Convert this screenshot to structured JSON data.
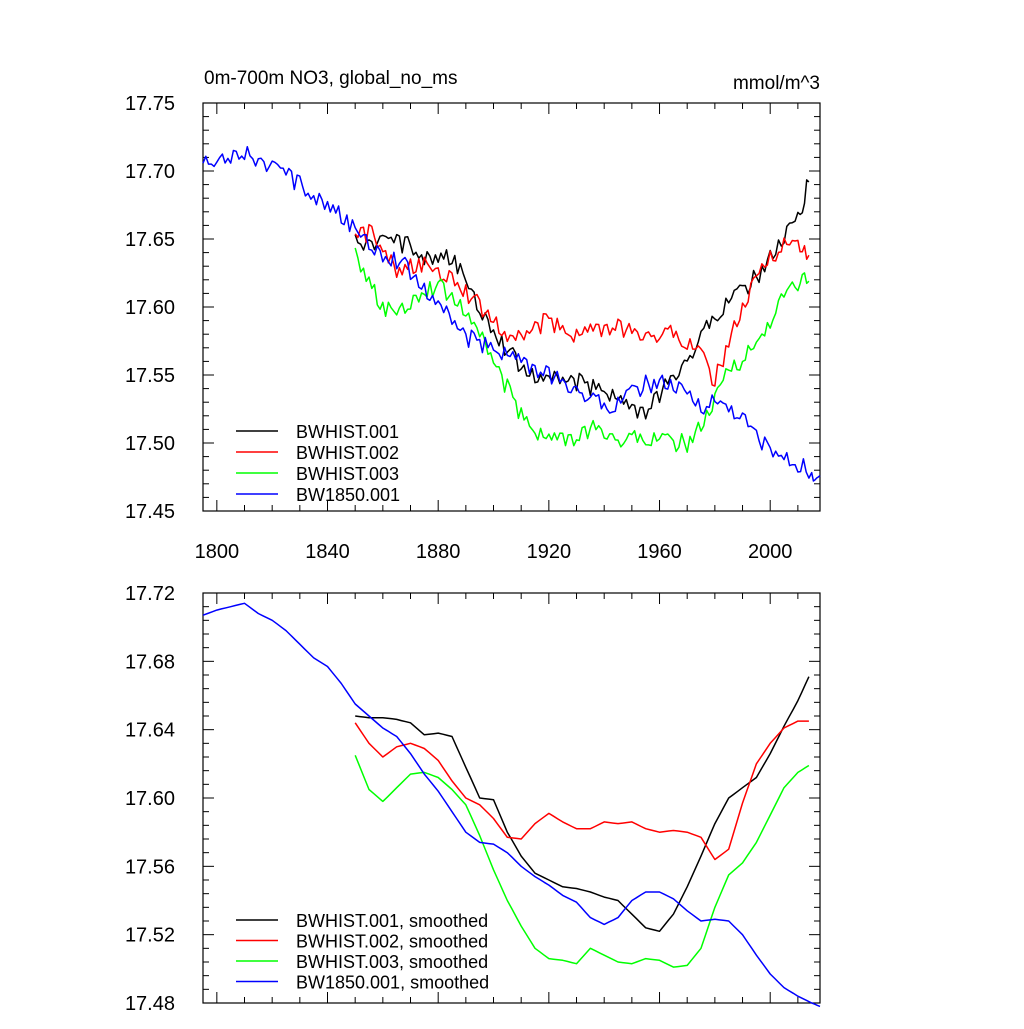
{
  "chart_data": [
    {
      "type": "line",
      "title": "0m-700m NO3, global_no_ms",
      "units_label": "mmol/m^3",
      "xlim": [
        1795,
        2018
      ],
      "ylim": [
        17.45,
        17.75
      ],
      "x_ticks": [
        1800,
        1840,
        1880,
        1920,
        1960,
        2000
      ],
      "x_tick_labels": [
        "1800",
        "1840",
        "1880",
        "1920",
        "1960",
        "2000"
      ],
      "y_ticks": [
        17.45,
        17.5,
        17.55,
        17.6,
        17.65,
        17.7,
        17.75
      ],
      "y_tick_labels": [
        "17.45",
        "17.50",
        "17.55",
        "17.60",
        "17.65",
        "17.70",
        "17.75"
      ],
      "legend_position": "bottom-left",
      "series": [
        {
          "name": "BWHIST.001",
          "color": "#000000",
          "x": [
            1850,
            1855,
            1860,
            1865,
            1870,
            1875,
            1880,
            1885,
            1890,
            1895,
            1900,
            1905,
            1910,
            1915,
            1920,
            1925,
            1930,
            1935,
            1940,
            1945,
            1950,
            1955,
            1960,
            1965,
            1970,
            1975,
            1980,
            1985,
            1990,
            1995,
            2000,
            2005,
            2010,
            2014
          ],
          "y": [
            17.648,
            17.647,
            17.648,
            17.647,
            17.645,
            17.637,
            17.638,
            17.636,
            17.618,
            17.6,
            17.585,
            17.568,
            17.556,
            17.55,
            17.548,
            17.546,
            17.545,
            17.541,
            17.54,
            17.533,
            17.524,
            17.522,
            17.535,
            17.548,
            17.562,
            17.578,
            17.594,
            17.605,
            17.612,
            17.622,
            17.636,
            17.65,
            17.665,
            17.692
          ]
        },
        {
          "name": "BWHIST.002",
          "color": "#ff0000",
          "x": [
            1850,
            1855,
            1860,
            1865,
            1870,
            1875,
            1880,
            1885,
            1890,
            1895,
            1900,
            1905,
            1910,
            1915,
            1920,
            1925,
            1930,
            1935,
            1940,
            1945,
            1950,
            1955,
            1960,
            1965,
            1970,
            1975,
            1980,
            1985,
            1990,
            1995,
            2000,
            2005,
            2010,
            2014
          ],
          "y": [
            17.65,
            17.655,
            17.645,
            17.628,
            17.63,
            17.63,
            17.625,
            17.625,
            17.612,
            17.6,
            17.592,
            17.578,
            17.577,
            17.585,
            17.59,
            17.583,
            17.58,
            17.583,
            17.583,
            17.585,
            17.58,
            17.58,
            17.58,
            17.581,
            17.575,
            17.565,
            17.545,
            17.575,
            17.598,
            17.62,
            17.638,
            17.645,
            17.648,
            17.638
          ]
        },
        {
          "name": "BWHIST.003",
          "color": "#00ff00",
          "x": [
            1850,
            1855,
            1860,
            1865,
            1870,
            1875,
            1880,
            1885,
            1890,
            1895,
            1900,
            1905,
            1910,
            1915,
            1920,
            1925,
            1930,
            1935,
            1940,
            1945,
            1950,
            1955,
            1960,
            1965,
            1970,
            1975,
            1980,
            1985,
            1990,
            1995,
            2000,
            2005,
            2010,
            2014
          ],
          "y": [
            17.64,
            17.62,
            17.598,
            17.595,
            17.605,
            17.614,
            17.615,
            17.608,
            17.598,
            17.58,
            17.56,
            17.54,
            17.52,
            17.51,
            17.503,
            17.503,
            17.502,
            17.51,
            17.508,
            17.503,
            17.503,
            17.505,
            17.503,
            17.5,
            17.5,
            17.512,
            17.53,
            17.555,
            17.562,
            17.572,
            17.59,
            17.608,
            17.618,
            17.619
          ]
        },
        {
          "name": "BW1850.001",
          "color": "#0000ff",
          "x": [
            1795,
            1800,
            1805,
            1810,
            1815,
            1820,
            1825,
            1830,
            1835,
            1840,
            1845,
            1850,
            1855,
            1860,
            1865,
            1870,
            1875,
            1880,
            1885,
            1890,
            1895,
            1900,
            1905,
            1910,
            1915,
            1920,
            1925,
            1930,
            1935,
            1940,
            1945,
            1950,
            1955,
            1960,
            1965,
            1970,
            1975,
            1980,
            1985,
            1990,
            1995,
            2000,
            2005,
            2010,
            2015,
            2018
          ],
          "y": [
            17.706,
            17.71,
            17.712,
            17.714,
            17.708,
            17.703,
            17.697,
            17.69,
            17.682,
            17.677,
            17.667,
            17.655,
            17.648,
            17.64,
            17.635,
            17.626,
            17.614,
            17.603,
            17.59,
            17.578,
            17.573,
            17.57,
            17.566,
            17.56,
            17.553,
            17.55,
            17.543,
            17.54,
            17.534,
            17.527,
            17.53,
            17.537,
            17.543,
            17.545,
            17.541,
            17.535,
            17.528,
            17.53,
            17.527,
            17.518,
            17.505,
            17.495,
            17.488,
            17.484,
            17.479,
            17.476
          ]
        }
      ]
    },
    {
      "type": "line",
      "title": "",
      "xlim": [
        1795,
        2018
      ],
      "ylim": [
        17.48,
        17.72
      ],
      "y_ticks": [
        17.48,
        17.52,
        17.56,
        17.6,
        17.64,
        17.68,
        17.72
      ],
      "y_tick_labels": [
        "17.48",
        "17.52",
        "17.56",
        "17.60",
        "17.64",
        "17.68",
        "17.72"
      ],
      "legend_position": "bottom-left",
      "series": [
        {
          "name": "BWHIST.001, smoothed",
          "color": "#000000",
          "x": [
            1850,
            1855,
            1860,
            1865,
            1870,
            1875,
            1880,
            1885,
            1890,
            1895,
            1900,
            1905,
            1910,
            1915,
            1920,
            1925,
            1930,
            1935,
            1940,
            1945,
            1950,
            1955,
            1960,
            1965,
            1970,
            1975,
            1980,
            1985,
            1990,
            1995,
            2000,
            2005,
            2010,
            2014
          ],
          "y": [
            17.648,
            17.647,
            17.647,
            17.646,
            17.644,
            17.637,
            17.638,
            17.636,
            17.618,
            17.6,
            17.599,
            17.58,
            17.566,
            17.556,
            17.552,
            17.548,
            17.547,
            17.545,
            17.542,
            17.54,
            17.532,
            17.524,
            17.522,
            17.532,
            17.548,
            17.566,
            17.585,
            17.6,
            17.606,
            17.612,
            17.626,
            17.642,
            17.657,
            17.671
          ]
        },
        {
          "name": "BWHIST.002, smoothed",
          "color": "#ff0000",
          "x": [
            1850,
            1855,
            1860,
            1865,
            1870,
            1875,
            1880,
            1885,
            1890,
            1895,
            1900,
            1905,
            1910,
            1915,
            1920,
            1925,
            1930,
            1935,
            1940,
            1945,
            1950,
            1955,
            1960,
            1965,
            1970,
            1975,
            1980,
            1985,
            1990,
            1995,
            2000,
            2005,
            2010,
            2014
          ],
          "y": [
            17.644,
            17.632,
            17.624,
            17.63,
            17.632,
            17.629,
            17.622,
            17.61,
            17.6,
            17.596,
            17.588,
            17.577,
            17.576,
            17.585,
            17.591,
            17.586,
            17.582,
            17.582,
            17.586,
            17.585,
            17.586,
            17.582,
            17.58,
            17.581,
            17.58,
            17.577,
            17.564,
            17.57,
            17.597,
            17.62,
            17.632,
            17.641,
            17.645,
            17.645
          ]
        },
        {
          "name": "BWHIST.003, smoothed",
          "color": "#00ff00",
          "x": [
            1850,
            1855,
            1860,
            1865,
            1870,
            1875,
            1880,
            1885,
            1890,
            1895,
            1900,
            1905,
            1910,
            1915,
            1920,
            1925,
            1930,
            1935,
            1940,
            1945,
            1950,
            1955,
            1960,
            1965,
            1970,
            1975,
            1980,
            1985,
            1990,
            1995,
            2000,
            2005,
            2010,
            2014
          ],
          "y": [
            17.625,
            17.605,
            17.598,
            17.606,
            17.614,
            17.615,
            17.612,
            17.605,
            17.596,
            17.578,
            17.558,
            17.54,
            17.525,
            17.512,
            17.506,
            17.505,
            17.503,
            17.512,
            17.508,
            17.504,
            17.503,
            17.506,
            17.505,
            17.501,
            17.502,
            17.512,
            17.536,
            17.555,
            17.562,
            17.574,
            17.59,
            17.606,
            17.615,
            17.619
          ]
        },
        {
          "name": "BW1850.001, smoothed",
          "color": "#0000ff",
          "x": [
            1795,
            1800,
            1805,
            1810,
            1815,
            1820,
            1825,
            1830,
            1835,
            1840,
            1845,
            1850,
            1855,
            1860,
            1865,
            1870,
            1875,
            1880,
            1885,
            1890,
            1895,
            1900,
            1905,
            1910,
            1915,
            1920,
            1925,
            1930,
            1935,
            1940,
            1945,
            1950,
            1955,
            1960,
            1965,
            1970,
            1975,
            1980,
            1985,
            1990,
            1995,
            2000,
            2005,
            2010,
            2015,
            2018
          ],
          "y": [
            17.707,
            17.71,
            17.712,
            17.714,
            17.708,
            17.704,
            17.698,
            17.69,
            17.682,
            17.677,
            17.667,
            17.655,
            17.648,
            17.641,
            17.636,
            17.626,
            17.614,
            17.604,
            17.592,
            17.58,
            17.574,
            17.573,
            17.568,
            17.56,
            17.554,
            17.549,
            17.543,
            17.539,
            17.53,
            17.526,
            17.53,
            17.54,
            17.545,
            17.545,
            17.541,
            17.534,
            17.528,
            17.529,
            17.528,
            17.52,
            17.508,
            17.497,
            17.489,
            17.484,
            17.48,
            17.478
          ]
        }
      ]
    }
  ]
}
